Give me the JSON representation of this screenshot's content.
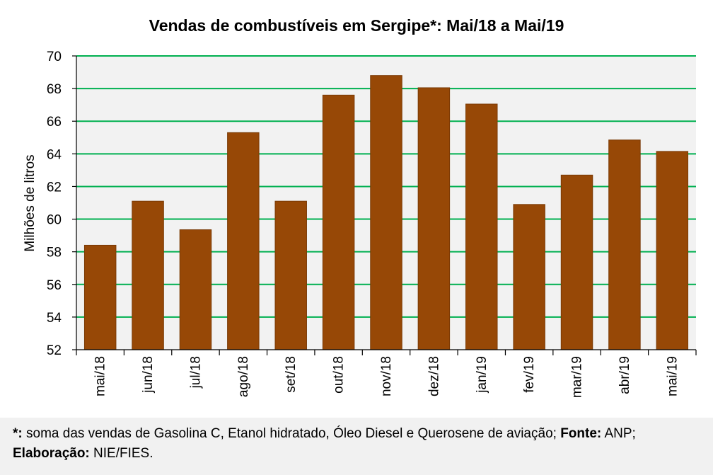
{
  "chart_data": {
    "type": "bar",
    "title": "Vendas de combustíveis em Sergipe*: Mai/18 a Mai/19",
    "xlabel": "",
    "ylabel": "Milhões de litros",
    "categories": [
      "mai/18",
      "jun/18",
      "jul/18",
      "ago/18",
      "set/18",
      "out/18",
      "nov/18",
      "dez/18",
      "jan/19",
      "fev/19",
      "mar/19",
      "abr/19",
      "mai/19"
    ],
    "values": [
      58.4,
      61.1,
      59.35,
      65.3,
      61.1,
      67.6,
      68.8,
      68.05,
      67.05,
      60.9,
      62.7,
      64.85,
      64.15
    ],
    "ylim": [
      52,
      70
    ],
    "yticks": [
      52,
      54,
      56,
      58,
      60,
      62,
      64,
      66,
      68,
      70
    ],
    "grid": true,
    "colors": {
      "bar": "#974806",
      "bar_edge": "#7a3a05",
      "grid": "#00b050",
      "plot_bg": "#f2f2f2"
    }
  },
  "footnote": {
    "star": "*:",
    "text1": " soma das vendas de Gasolina C, Etanol hidratado, Óleo Diesel e Querosene de aviação; ",
    "source_label": "Fonte:",
    "source_value": " ANP;",
    "elab_label": "Elaboração:",
    "elab_value": " NIE/FIES."
  }
}
